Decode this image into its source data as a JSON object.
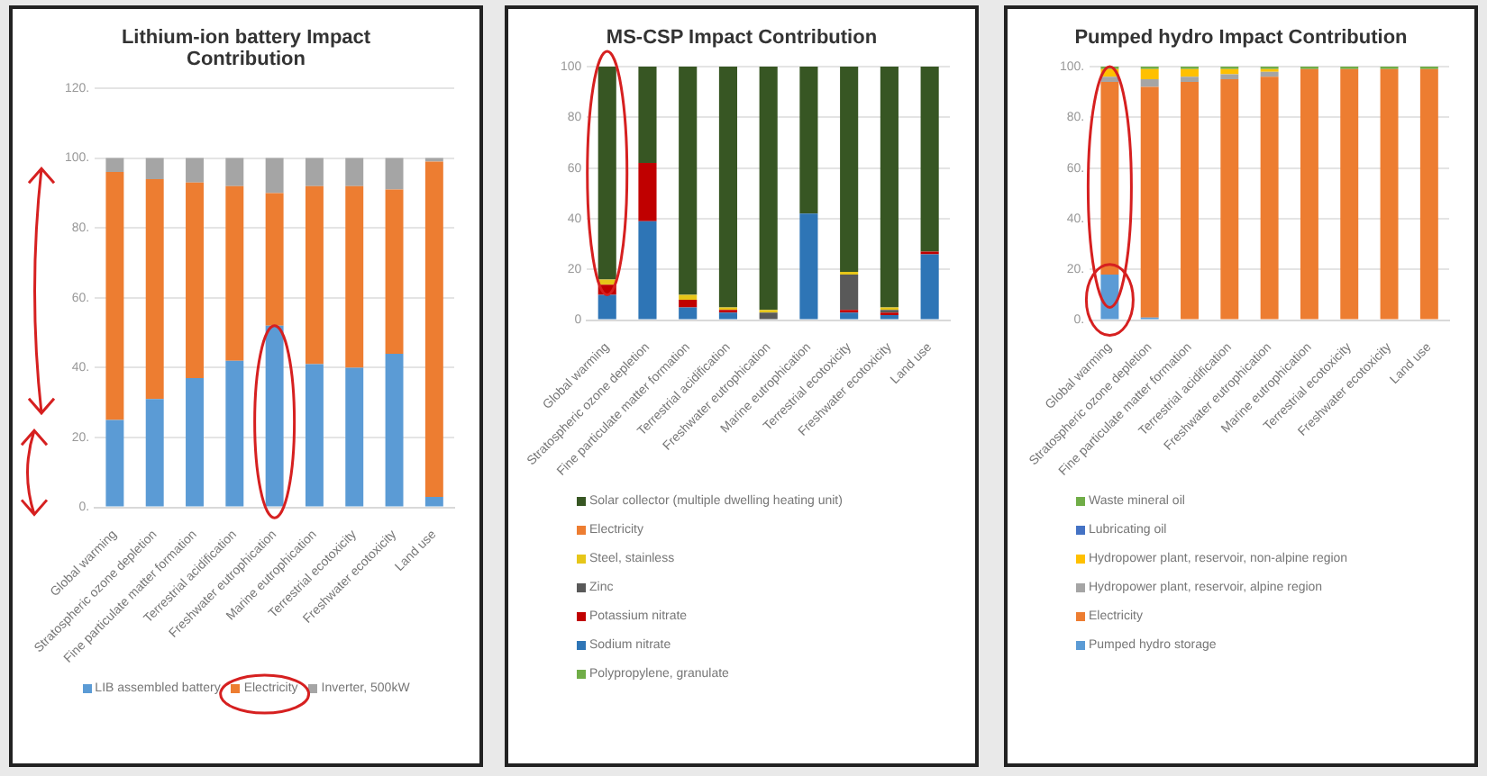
{
  "chart_data": [
    {
      "type": "bar",
      "stacked": true,
      "title": "Lithium-ion battery Impact Contribution",
      "categories": [
        "Global warming",
        "Stratospheric ozone depletion",
        "Fine particulate matter formation",
        "Terrestrial acidification",
        "Freshwater eutrophication",
        "Marine eutrophication",
        "Terrestrial ecotoxicity",
        "Freshwater ecotoxicity",
        "Land use"
      ],
      "series": [
        {
          "name": "LIB assembled battery",
          "color": "#5b9bd5",
          "values": [
            25,
            31,
            37,
            42,
            52,
            41,
            40,
            44,
            3
          ]
        },
        {
          "name": "Electricity",
          "color": "#ed7d31",
          "values": [
            71,
            63,
            56,
            50,
            38,
            51,
            52,
            47,
            96
          ]
        },
        {
          "name": "Inverter, 500kW",
          "color": "#a5a5a5",
          "values": [
            4,
            6,
            7,
            8,
            10,
            8,
            8,
            9,
            1
          ]
        }
      ],
      "ylim": [
        0,
        120
      ],
      "yticks": [
        {
          "value": 0,
          "label": "0."
        },
        {
          "value": 20,
          "label": "20."
        },
        {
          "value": 40,
          "label": "40."
        },
        {
          "value": 60,
          "label": "60."
        },
        {
          "value": 80,
          "label": "80."
        },
        {
          "value": 100,
          "label": "100."
        },
        {
          "value": 120,
          "label": "120."
        }
      ],
      "grid": "y",
      "legend": "bottom"
    },
    {
      "type": "bar",
      "stacked": true,
      "title": "MS-CSP Impact Contribution",
      "categories": [
        "Global warming",
        "Stratospheric ozone depletion",
        "Fine particulate matter formation",
        "Terrestrial acidification",
        "Freshwater eutrophication",
        "Marine eutrophication",
        "Terrestrial ecotoxicity",
        "Freshwater ecotoxicity",
        "Land use"
      ],
      "series": [
        {
          "name": "Polypropylene, granulate",
          "color": "#70ad47",
          "values": [
            0,
            0,
            0,
            0,
            0,
            0,
            0,
            0,
            0
          ]
        },
        {
          "name": "Sodium nitrate",
          "color": "#2e75b6",
          "values": [
            10,
            39,
            5,
            3,
            0,
            42,
            3,
            2,
            26
          ]
        },
        {
          "name": "Potassium nitrate",
          "color": "#c00000",
          "values": [
            4,
            23,
            3,
            1,
            0,
            0,
            1,
            1,
            1
          ]
        },
        {
          "name": "Zinc",
          "color": "#595959",
          "values": [
            0,
            0,
            0,
            0,
            3,
            0,
            14,
            1,
            0
          ]
        },
        {
          "name": "Steel, stainless",
          "color": "#e6c619",
          "values": [
            2,
            0,
            2,
            1,
            1,
            0,
            1,
            1,
            0
          ]
        },
        {
          "name": "Electricity",
          "color": "#ed7d31",
          "values": [
            0,
            0,
            0,
            0,
            0,
            0,
            0,
            0,
            0
          ]
        },
        {
          "name": "Solar collector (multiple dwelling heating unit)",
          "color": "#375623",
          "values": [
            84,
            38,
            90,
            95,
            96,
            58,
            81,
            95,
            73
          ]
        }
      ],
      "ylim": [
        0,
        100
      ],
      "yticks": [
        0,
        20,
        40,
        60,
        80,
        100
      ],
      "grid": "y",
      "legend": "bottom"
    },
    {
      "type": "bar",
      "stacked": true,
      "title": "Pumped hydro Impact Contribution",
      "categories": [
        "Global warming",
        "Stratospheric ozone depletion",
        "Fine particulate matter formation",
        "Terrestrial acidification",
        "Freshwater eutrophication",
        "Marine eutrophication",
        "Terrestrial ecotoxicity",
        "Freshwater ecotoxicity",
        "Land use"
      ],
      "series": [
        {
          "name": "Pumped hydro storage",
          "color": "#5b9bd5",
          "values": [
            18,
            1,
            0,
            0,
            0,
            0,
            0,
            0,
            0
          ]
        },
        {
          "name": "Electricity",
          "color": "#ed7d31",
          "values": [
            76,
            91,
            94,
            95,
            96,
            99,
            99,
            99,
            99
          ]
        },
        {
          "name": "Hydropower plant, reservoir, alpine region",
          "color": "#a5a5a5",
          "values": [
            2,
            3,
            2,
            2,
            2,
            0,
            0,
            0,
            0
          ]
        },
        {
          "name": "Hydropower plant, reservoir, non-alpine region",
          "color": "#ffc000",
          "values": [
            3,
            4,
            3,
            2,
            1,
            0,
            0,
            0,
            0
          ]
        },
        {
          "name": "Lubricating oil",
          "color": "#4472c4",
          "values": [
            0,
            0,
            0,
            0,
            0,
            0,
            0,
            0,
            0
          ]
        },
        {
          "name": "Waste mineral oil",
          "color": "#70ad47",
          "values": [
            1,
            1,
            1,
            1,
            1,
            1,
            1,
            1,
            1
          ]
        }
      ],
      "ylim": [
        0,
        100
      ],
      "yticks": [
        {
          "value": 0,
          "label": "0."
        },
        {
          "value": 20,
          "label": "20."
        },
        {
          "value": 40,
          "label": "40."
        },
        {
          "value": 60,
          "label": "60."
        },
        {
          "value": 80,
          "label": "80."
        },
        {
          "value": 100,
          "label": "100."
        }
      ],
      "grid": "y",
      "legend": "bottom"
    }
  ]
}
